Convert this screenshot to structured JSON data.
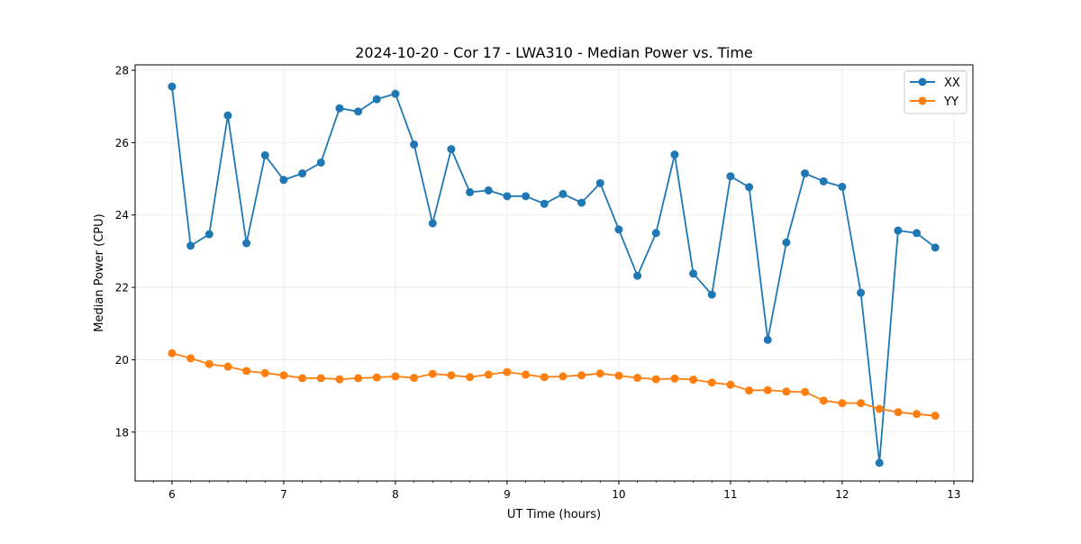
{
  "chart_data": {
    "type": "line",
    "title": "2024-10-20 - Cor 17 - LWA310 - Median Power vs. Time",
    "xlabel": "UT Time (hours)",
    "ylabel": "Median Power (CPU)",
    "xlim": [
      5.67,
      13.17
    ],
    "ylim": [
      16.65,
      28.15
    ],
    "xticks": [
      6,
      7,
      8,
      9,
      10,
      11,
      12,
      13
    ],
    "xtick_labels": [
      "6",
      "7",
      "8",
      "9",
      "10",
      "11",
      "12",
      "13"
    ],
    "x_minor_step": 0.16667,
    "yticks": [
      18,
      20,
      22,
      24,
      26,
      28
    ],
    "ytick_labels": [
      "18",
      "20",
      "22",
      "24",
      "26",
      "28"
    ],
    "grid": true,
    "legend_position": "top-right",
    "x": [
      6.0,
      6.1667,
      6.3333,
      6.5,
      6.6667,
      6.8333,
      7.0,
      7.1667,
      7.3333,
      7.5,
      7.6667,
      7.8333,
      8.0,
      8.1667,
      8.3333,
      8.5,
      8.6667,
      8.8333,
      9.0,
      9.1667,
      9.3333,
      9.5,
      9.6667,
      9.8333,
      10.0,
      10.1667,
      10.3333,
      10.5,
      10.6667,
      10.8333,
      11.0,
      11.1667,
      11.3333,
      11.5,
      11.6667,
      11.8333,
      12.0,
      12.1667,
      12.3333,
      12.5,
      12.6667,
      12.8333
    ],
    "series": [
      {
        "name": "XX",
        "color": "#1f77b4",
        "values": [
          27.55,
          23.15,
          23.47,
          26.75,
          23.22,
          25.65,
          24.97,
          25.15,
          25.45,
          26.95,
          26.86,
          27.2,
          27.35,
          25.95,
          23.77,
          25.82,
          24.63,
          24.68,
          24.52,
          24.52,
          24.31,
          24.58,
          24.34,
          24.88,
          23.6,
          22.32,
          23.5,
          25.67,
          22.38,
          21.8,
          25.07,
          24.77,
          20.55,
          23.24,
          25.15,
          24.93,
          24.78,
          21.85,
          17.15,
          23.57,
          23.5,
          23.1
        ]
      },
      {
        "name": "YY",
        "color": "#ff7f0e",
        "values": [
          20.18,
          20.04,
          19.88,
          19.81,
          19.69,
          19.63,
          19.57,
          19.49,
          19.49,
          19.46,
          19.49,
          19.51,
          19.54,
          19.5,
          19.61,
          19.57,
          19.52,
          19.59,
          19.66,
          19.59,
          19.52,
          19.54,
          19.57,
          19.62,
          19.56,
          19.5,
          19.46,
          19.48,
          19.45,
          19.37,
          19.31,
          19.15,
          19.16,
          19.12,
          19.11,
          18.87,
          18.8,
          18.8,
          18.64,
          18.55,
          18.5,
          18.45
        ]
      }
    ]
  }
}
